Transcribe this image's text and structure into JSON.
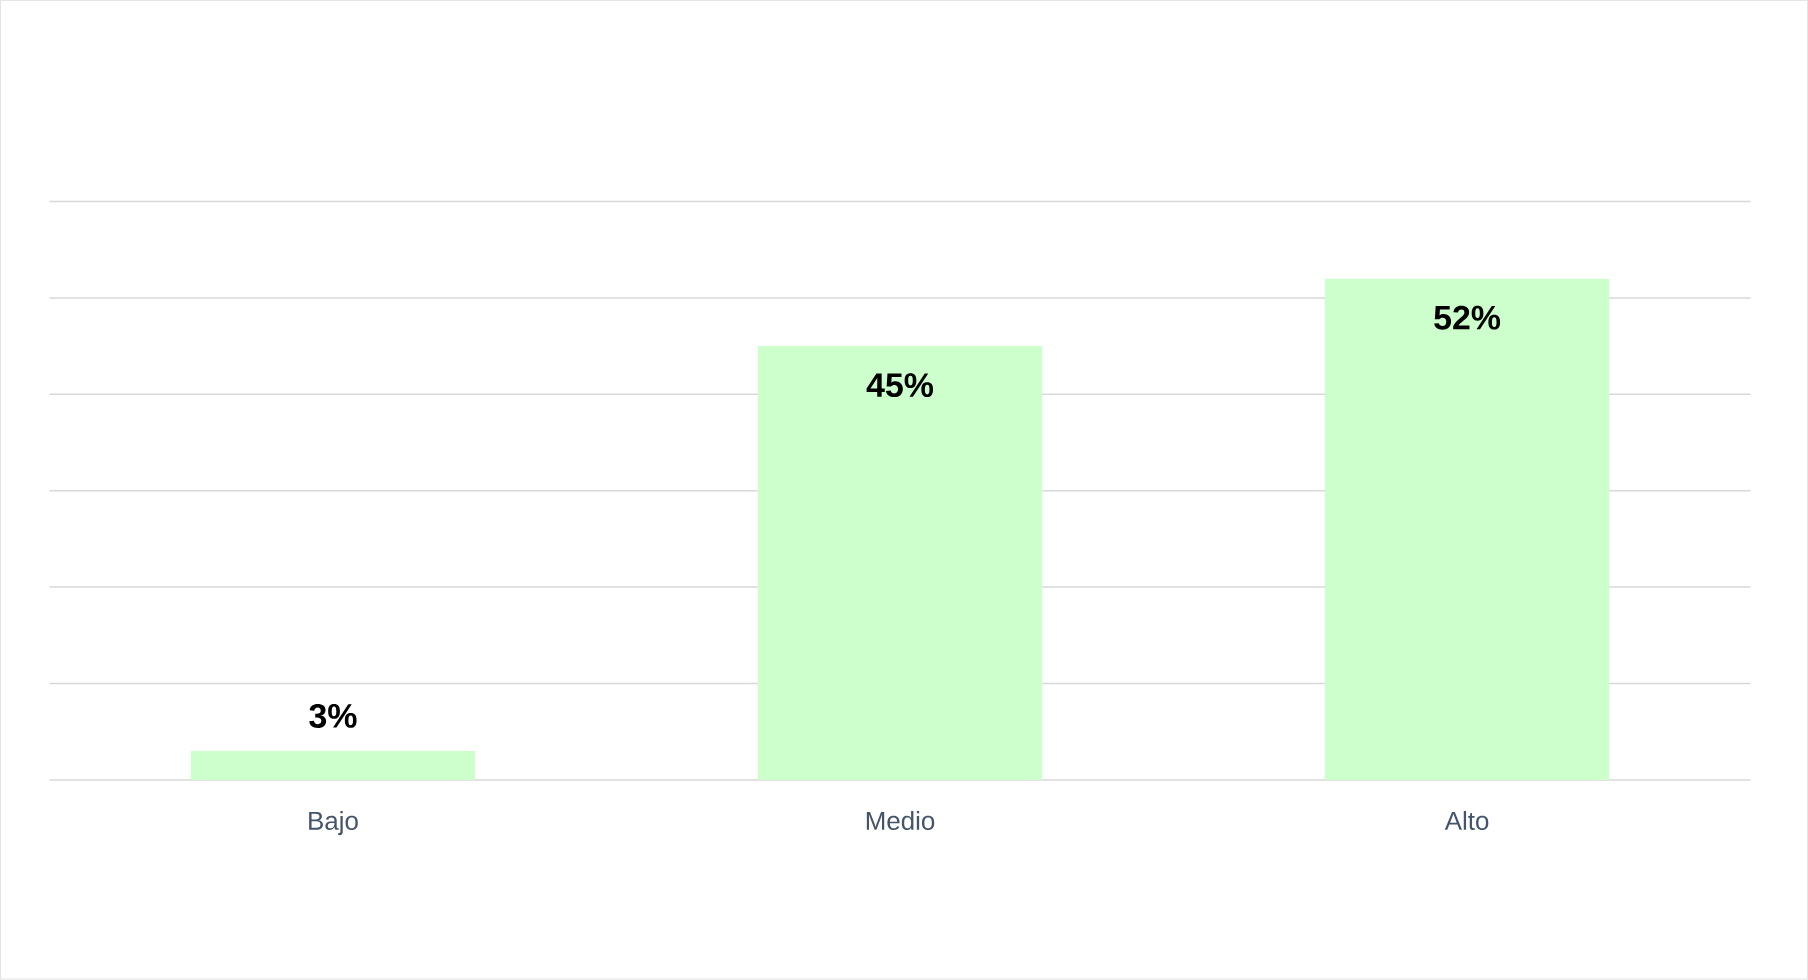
{
  "chart_data": {
    "type": "bar",
    "categories": [
      "Bajo",
      "Medio",
      "Alto"
    ],
    "values": [
      3,
      45,
      52
    ],
    "value_labels": [
      "3%",
      "45%",
      "52%"
    ],
    "color": "#ccffcc",
    "ylim": [
      0,
      60
    ],
    "yticks": [
      {
        "value": 0,
        "label": null
      },
      {
        "value": 10,
        "label": null
      },
      {
        "value": 20,
        "label": null
      },
      {
        "value": 30,
        "label": null
      },
      {
        "value": 40,
        "label": null
      },
      {
        "value": 50,
        "label": null
      },
      {
        "value": 60,
        "label": null
      }
    ],
    "grid": "y",
    "tick_labels": "x"
  }
}
